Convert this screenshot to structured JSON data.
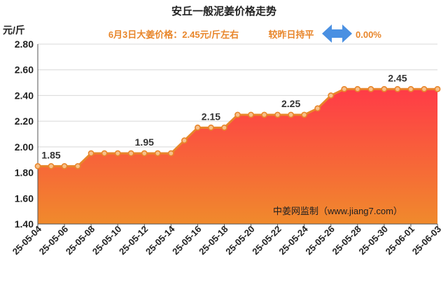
{
  "chart_data": {
    "type": "area",
    "title": "安丘一般泥姜价格走势",
    "subtitle": "6月3日大姜价格：2.45元/斤左右",
    "compare_text": "较昨日持平",
    "change_text": "0.00%",
    "ylabel": "元/斤",
    "ylim": [
      1.4,
      2.8
    ],
    "yticks": [
      "1.40",
      "1.60",
      "1.80",
      "2.00",
      "2.20",
      "2.40",
      "2.60",
      "2.80"
    ],
    "x": [
      "25-05-04",
      "25-05-05",
      "25-05-06",
      "25-05-07",
      "25-05-08",
      "25-05-09",
      "25-05-10",
      "25-05-11",
      "25-05-12",
      "25-05-13",
      "25-05-14",
      "25-05-15",
      "25-05-16",
      "25-05-17",
      "25-05-18",
      "25-05-19",
      "25-05-20",
      "25-05-21",
      "25-05-22",
      "25-05-23",
      "25-05-24",
      "25-05-25",
      "25-05-26",
      "25-05-27",
      "25-05-28",
      "25-05-29",
      "25-05-30",
      "25-05-31",
      "25-06-01",
      "25-06-02",
      "25-06-03"
    ],
    "xtick_labels": [
      "25-05-04",
      "25-05-06",
      "25-05-08",
      "25-05-10",
      "25-05-12",
      "25-05-14",
      "25-05-16",
      "25-05-18",
      "25-05-20",
      "25-05-22",
      "25-05-24",
      "25-05-26",
      "25-05-28",
      "25-05-30",
      "25-06-01",
      "25-06-03"
    ],
    "values": [
      1.85,
      1.85,
      1.85,
      1.85,
      1.95,
      1.95,
      1.95,
      1.95,
      1.95,
      1.95,
      1.95,
      2.05,
      2.15,
      2.15,
      2.15,
      2.25,
      2.25,
      2.25,
      2.25,
      2.25,
      2.25,
      2.3,
      2.4,
      2.45,
      2.45,
      2.45,
      2.45,
      2.45,
      2.45,
      2.45,
      2.45
    ],
    "data_labels": [
      {
        "index": 1,
        "text": "1.85"
      },
      {
        "index": 8,
        "text": "1.95"
      },
      {
        "index": 13,
        "text": "2.15"
      },
      {
        "index": 19,
        "text": "2.25"
      },
      {
        "index": 27,
        "text": "2.45"
      }
    ],
    "grid": "horizontal",
    "watermark": "中姜网监制（www.jiang7.com）",
    "colors": {
      "line": "#e8862b",
      "marker_fill": "#f7c08a",
      "area_top": "#ff3b47",
      "area_bottom": "#f08a2c",
      "arrow": "#4a90e2",
      "subtitle": "#e8862b"
    }
  }
}
